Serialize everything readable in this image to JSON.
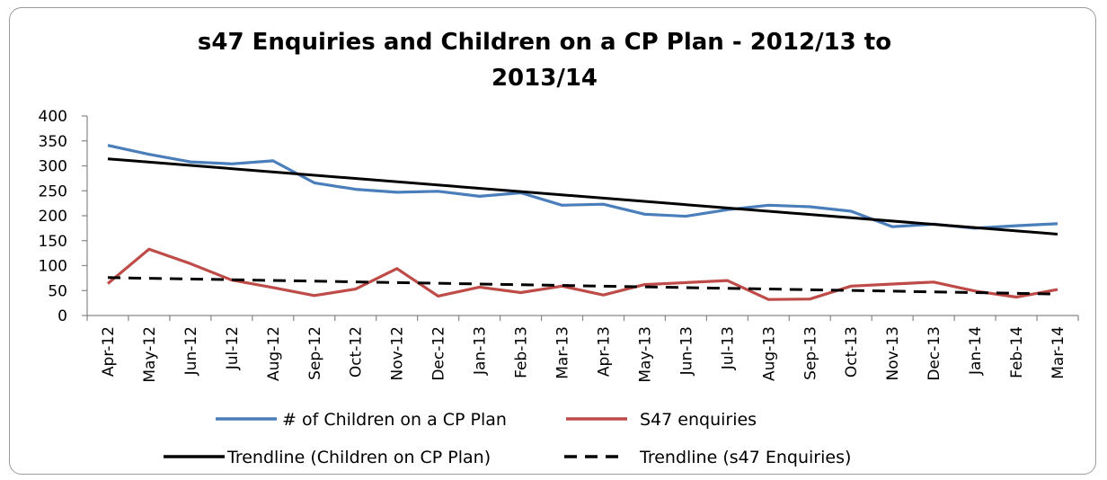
{
  "chart_data": {
    "type": "line",
    "title_lines": [
      "s47 Enquiries and Children on a CP Plan - 2012/13 to",
      "2013/14"
    ],
    "xlabel": "",
    "ylabel": "",
    "ylim": [
      0,
      400
    ],
    "yticks": [
      0,
      50,
      100,
      150,
      200,
      250,
      300,
      350,
      400
    ],
    "grid": false,
    "legend_position": "bottom",
    "categories": [
      "Apr-12",
      "May-12",
      "Jun-12",
      "Jul-12",
      "Aug-12",
      "Sep-12",
      "Oct-12",
      "Nov-12",
      "Dec-12",
      "Jan-13",
      "Feb-13",
      "Mar-13",
      "Apr-13",
      "May-13",
      "Jun-13",
      "Jul-13",
      "Aug-13",
      "Sep-13",
      "Oct-13",
      "Nov-13",
      "Dec-13",
      "Jan-14",
      "Feb-14",
      "Mar-14"
    ],
    "series": [
      {
        "name": "# of Children on a CP Plan",
        "color": "#4a7ebb",
        "style": "solid",
        "values": [
          341,
          323,
          308,
          304,
          310,
          266,
          253,
          247,
          249,
          239,
          246,
          221,
          223,
          203,
          199,
          212,
          221,
          218,
          209,
          178,
          183,
          175,
          180,
          184
        ]
      },
      {
        "name": "S47 enquiries",
        "color": "#be4b48",
        "style": "solid",
        "values": [
          64,
          133,
          104,
          71,
          56,
          40,
          53,
          94,
          39,
          57,
          46,
          59,
          41,
          62,
          66,
          70,
          32,
          33,
          59,
          63,
          67,
          49,
          37,
          52
        ]
      },
      {
        "name": "Trendline (Children on CP Plan)",
        "color": "#000000",
        "style": "solid",
        "trend": [
          314,
          163
        ]
      },
      {
        "name": "Trendline (s47 Enquiries)",
        "color": "#000000",
        "style": "dashed",
        "trend": [
          76,
          43
        ]
      }
    ]
  }
}
